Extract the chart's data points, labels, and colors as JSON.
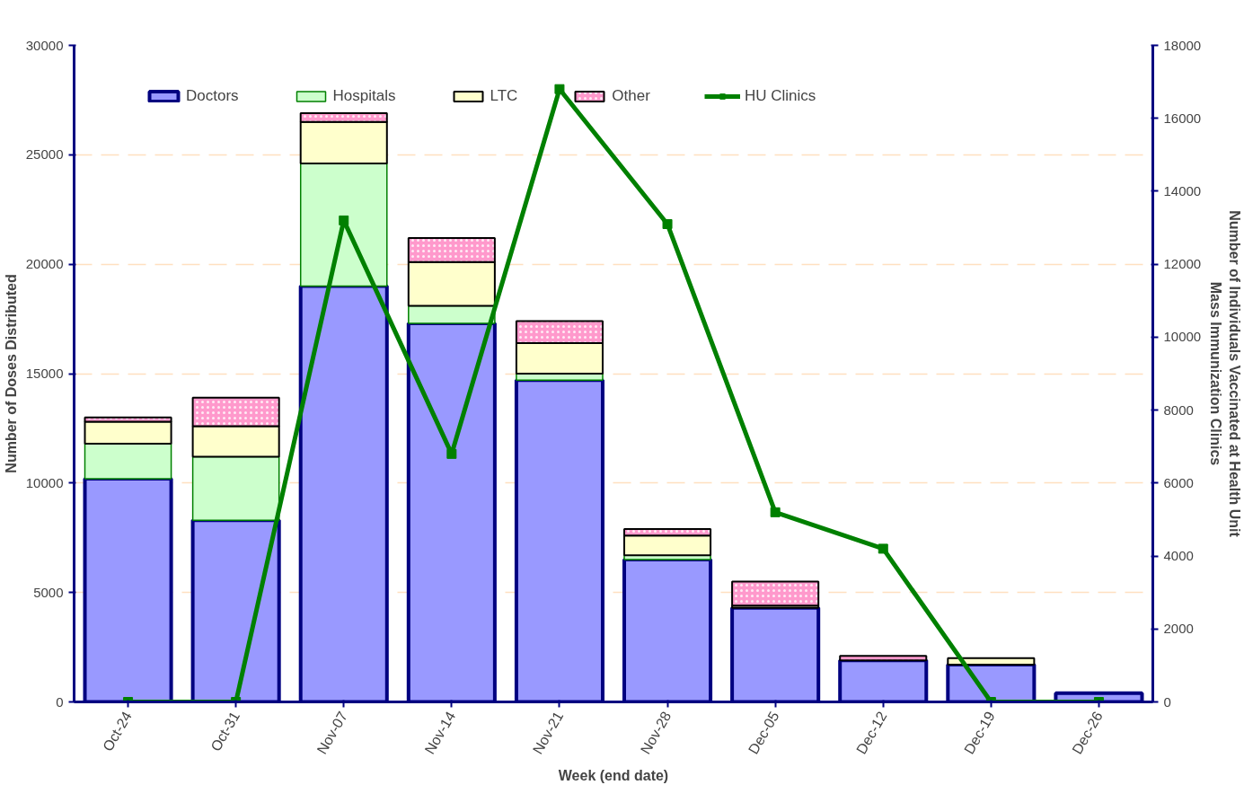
{
  "chart_data": {
    "type": "bar",
    "stacked": true,
    "xlabel": "Week (end date)",
    "ylabel": "Number of Doses Distributed",
    "y2label": "Number of Individuals Vaccinated at Health Unit\nMass Immunization Clinics",
    "categories": [
      "Oct-24",
      "Oct-31",
      "Nov-07",
      "Nov-14",
      "Nov-21",
      "Nov-28",
      "Dec-05",
      "Dec-12",
      "Dec-19",
      "Dec-26"
    ],
    "series": [
      {
        "name": "Doctors",
        "color": "#9999ff",
        "values": [
          10200,
          8300,
          19000,
          17300,
          14700,
          6500,
          4300,
          1900,
          1700,
          400
        ]
      },
      {
        "name": "Hospitals",
        "color": "#ccffcc",
        "values": [
          1600,
          2900,
          5600,
          800,
          300,
          200,
          0,
          0,
          0,
          0
        ]
      },
      {
        "name": "LTC",
        "color": "#ffffcc",
        "values": [
          1000,
          1400,
          1900,
          2000,
          1400,
          900,
          100,
          null,
          300,
          0
        ]
      },
      {
        "name": "Other",
        "color": "#ff99cc",
        "values": [
          200,
          1300,
          400,
          1100,
          1000,
          300,
          1100,
          200,
          0,
          0
        ]
      },
      {
        "name": "HU Clinics",
        "type": "line",
        "axis": "y2",
        "color": "#008000",
        "marker": "square",
        "values": [
          0,
          0,
          13200,
          6800,
          16800,
          13100,
          5200,
          4200,
          0,
          0
        ]
      }
    ],
    "ylim": [
      0,
      30000
    ],
    "yticks": [
      0,
      5000,
      10000,
      15000,
      20000,
      25000,
      30000
    ],
    "y2lim": [
      0,
      18000
    ],
    "y2ticks": [
      0,
      2000,
      4000,
      6000,
      8000,
      10000,
      12000,
      14000,
      16000,
      18000
    ],
    "grid": "y",
    "legend": "top"
  }
}
